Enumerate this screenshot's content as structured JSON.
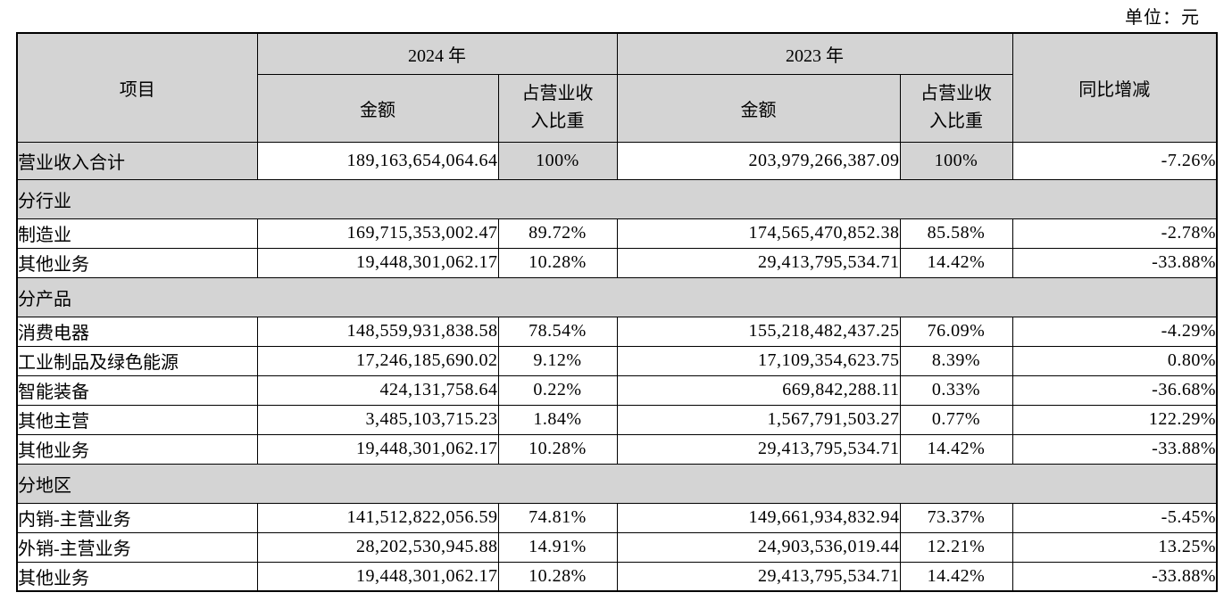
{
  "unit_label": "单位：元",
  "colors": {
    "shade_fill": "#d4d4d4",
    "border": "#000000",
    "text": "#000000"
  },
  "table": {
    "header": {
      "item": "项目",
      "year_2024": "2024 年",
      "year_2023": "2023 年",
      "amount_2024": "金额",
      "ratio_2024": "占营业收入比重",
      "amount_2023": "金额",
      "ratio_2023": "占营业收入比重",
      "yoy": "同比增减"
    },
    "rows": [
      {
        "type": "data",
        "highlight": true,
        "cells": [
          "营业收入合计",
          "189,163,654,064.64",
          "100%",
          "203,979,266,387.09",
          "100%",
          "-7.26%"
        ]
      },
      {
        "type": "section",
        "label": "分行业"
      },
      {
        "type": "data",
        "cells": [
          "制造业",
          "169,715,353,002.47",
          "89.72%",
          "174,565,470,852.38",
          "85.58%",
          "-2.78%"
        ]
      },
      {
        "type": "data",
        "cells": [
          "其他业务",
          "19,448,301,062.17",
          "10.28%",
          "29,413,795,534.71",
          "14.42%",
          "-33.88%"
        ]
      },
      {
        "type": "section",
        "label": "分产品"
      },
      {
        "type": "data",
        "cells": [
          "消费电器",
          "148,559,931,838.58",
          "78.54%",
          "155,218,482,437.25",
          "76.09%",
          "-4.29%"
        ]
      },
      {
        "type": "data",
        "cells": [
          "工业制品及绿色能源",
          "17,246,185,690.02",
          "9.12%",
          "17,109,354,623.75",
          "8.39%",
          "0.80%"
        ]
      },
      {
        "type": "data",
        "cells": [
          "智能装备",
          "424,131,758.64",
          "0.22%",
          "669,842,288.11",
          "0.33%",
          "-36.68%"
        ]
      },
      {
        "type": "data",
        "cells": [
          "其他主营",
          "3,485,103,715.23",
          "1.84%",
          "1,567,791,503.27",
          "0.77%",
          "122.29%"
        ]
      },
      {
        "type": "data",
        "cells": [
          "其他业务",
          "19,448,301,062.17",
          "10.28%",
          "29,413,795,534.71",
          "14.42%",
          "-33.88%"
        ]
      },
      {
        "type": "section",
        "label": "分地区"
      },
      {
        "type": "data",
        "cells": [
          "内销-主营业务",
          "141,512,822,056.59",
          "74.81%",
          "149,661,934,832.94",
          "73.37%",
          "-5.45%"
        ]
      },
      {
        "type": "data",
        "cells": [
          "外销-主营业务",
          "28,202,530,945.88",
          "14.91%",
          "24,903,536,019.44",
          "12.21%",
          "13.25%"
        ]
      },
      {
        "type": "data",
        "cells": [
          "其他业务",
          "19,448,301,062.17",
          "10.28%",
          "29,413,795,534.71",
          "14.42%",
          "-33.88%"
        ]
      }
    ]
  }
}
